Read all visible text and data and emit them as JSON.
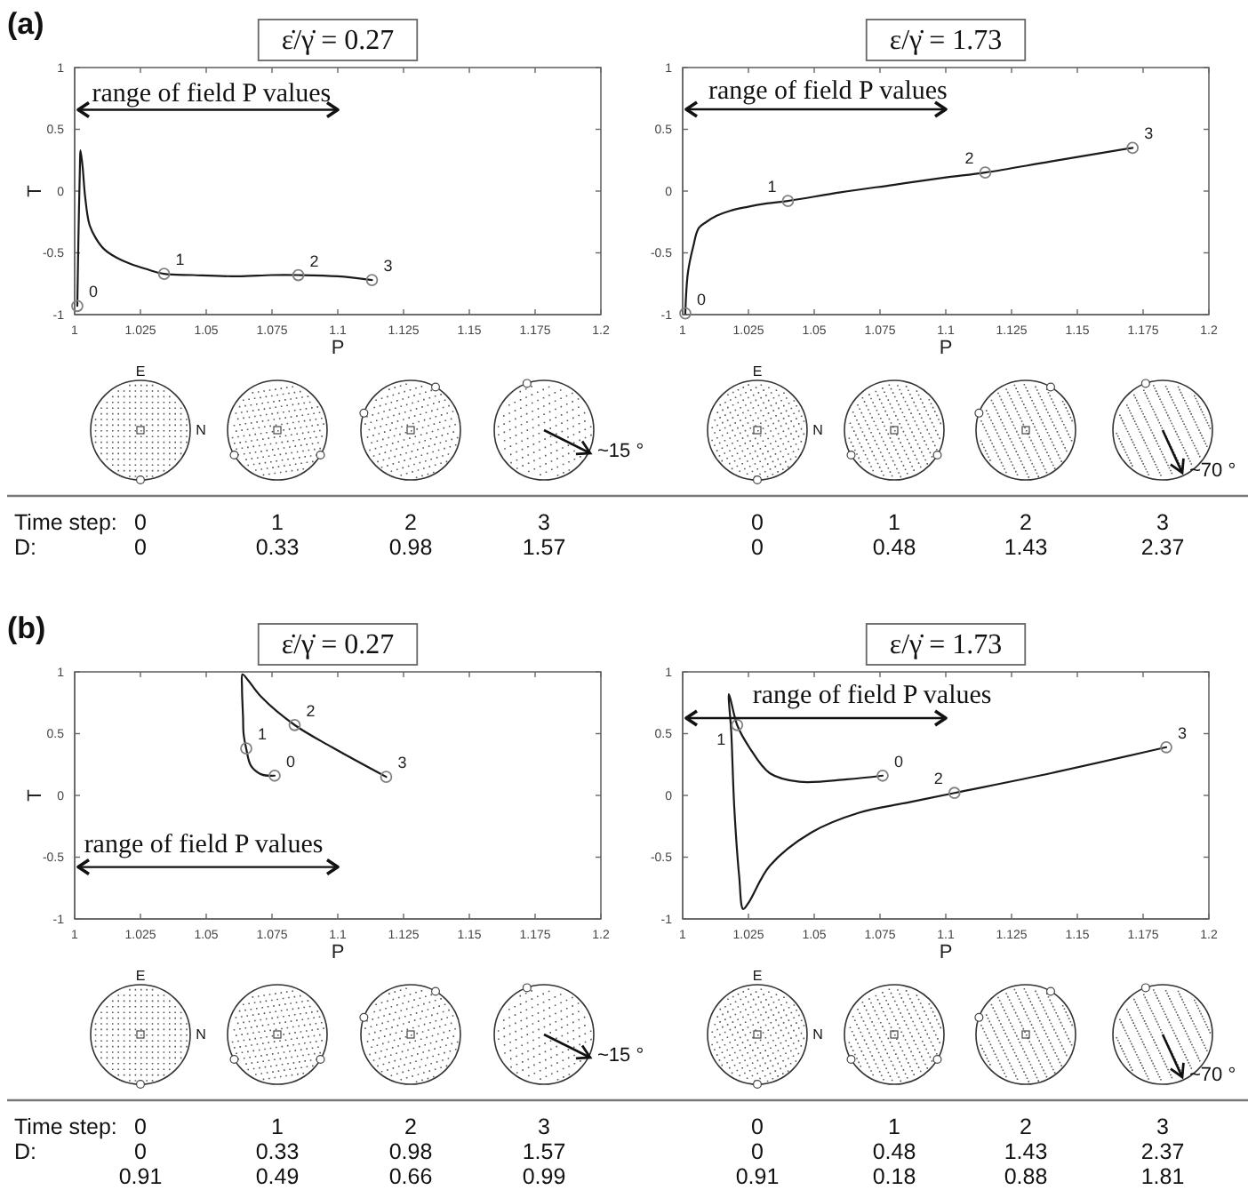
{
  "chart_data": [
    {
      "type": "line",
      "title": "ε̇/γ̇ = 0.27",
      "xlabel": "P",
      "ylabel": "T",
      "xlim": [
        1,
        1.2
      ],
      "ylim": [
        -1,
        1
      ],
      "xticks": [
        1,
        1.025,
        1.05,
        1.075,
        1.1,
        1.125,
        1.15,
        1.175,
        1.2
      ],
      "yticks": [
        -1,
        -0.5,
        0,
        0.5,
        1
      ],
      "series": [
        {
          "color": "#1a1a1a",
          "x": [
            1.001,
            1.0015,
            1.002,
            1.0022,
            1.003,
            1.004,
            1.0056,
            1.008,
            1.0112,
            1.016,
            1.0213,
            1.027,
            1.034,
            1.045,
            1.062,
            1.075,
            1.085,
            1.1,
            1.113
          ],
          "values": [
            -0.93,
            -0.3,
            0.2,
            0.33,
            0.2,
            -0.05,
            -0.27,
            -0.38,
            -0.47,
            -0.54,
            -0.59,
            -0.63,
            -0.67,
            -0.68,
            -0.69,
            -0.68,
            -0.68,
            -0.69,
            -0.72
          ]
        },
        {
          "type": "scatter",
          "marker": "circle",
          "color": "#808080",
          "x": [
            1.001,
            1.034,
            1.085,
            1.113
          ],
          "values": [
            -0.93,
            -0.67,
            -0.68,
            -0.72
          ]
        }
      ],
      "annotations": [
        "(a)",
        "range of field P values",
        {
          "text": "0",
          "x": 1.001,
          "y": -0.93
        },
        {
          "text": "1",
          "x": 1.034,
          "y": -0.67
        },
        {
          "text": "2",
          "x": 1.085,
          "y": -0.68
        },
        {
          "text": "3",
          "x": 1.113,
          "y": -0.72
        },
        "E",
        "N",
        "~15 °",
        "Time step:",
        "0",
        "1",
        "2",
        "3",
        "D:",
        "0",
        "0.33",
        "0.98",
        "1.57"
      ]
    },
    {
      "type": "line",
      "title": "ε/γ̇ = 1.73",
      "xlabel": "P",
      "xlim": [
        1,
        1.2
      ],
      "ylim": [
        -1,
        1
      ],
      "xticks": [
        1,
        1.025,
        1.05,
        1.075,
        1.1,
        1.125,
        1.15,
        1.175,
        1.2
      ],
      "yticks": [
        -1,
        -0.5,
        0,
        0.5,
        1
      ],
      "series": [
        {
          "color": "#1a1a1a",
          "x": [
            1.001,
            1.002,
            1.004,
            1.0061,
            1.009,
            1.0129,
            1.018,
            1.0241,
            1.032,
            1.04,
            1.06,
            1.08,
            1.1,
            1.115,
            1.14,
            1.171
          ],
          "values": [
            -0.99,
            -0.66,
            -0.45,
            -0.3,
            -0.25,
            -0.2,
            -0.16,
            -0.13,
            -0.1,
            -0.08,
            -0.01,
            0.05,
            0.11,
            0.15,
            0.24,
            0.35
          ]
        },
        {
          "type": "scatter",
          "marker": "circle",
          "color": "#808080",
          "x": [
            1.001,
            1.04,
            1.115,
            1.171
          ],
          "values": [
            -0.99,
            -0.08,
            0.15,
            0.35
          ]
        }
      ],
      "annotations": [
        "range of field P values",
        {
          "text": "0",
          "x": 1.001,
          "y": -0.99
        },
        {
          "text": "1",
          "x": 1.04,
          "y": -0.08
        },
        {
          "text": "2",
          "x": 1.115,
          "y": 0.15
        },
        {
          "text": "3",
          "x": 1.171,
          "y": 0.35
        },
        "E",
        "N",
        "~70 °",
        "0",
        "1",
        "2",
        "3",
        "0",
        "0.48",
        "1.43",
        "2.37"
      ]
    },
    {
      "type": "line",
      "title": "ε̇/γ̇ = 0.27",
      "xlabel": "P",
      "ylabel": "T",
      "xlim": [
        1,
        1.2
      ],
      "ylim": [
        -1,
        1
      ],
      "xticks": [
        1,
        1.025,
        1.05,
        1.075,
        1.1,
        1.125,
        1.15,
        1.175,
        1.2
      ],
      "yticks": [
        -1,
        -0.5,
        0,
        0.5,
        1
      ],
      "series": [
        {
          "color": "#1a1a1a",
          "x": [
            1.076,
            1.071,
            1.067,
            1.0652,
            1.0642,
            1.064,
            1.0636,
            1.0638,
            1.066,
            1.0708,
            1.0836,
            1.0978,
            1.1184
          ],
          "values": [
            0.16,
            0.17,
            0.24,
            0.38,
            0.5,
            0.63,
            0.87,
            0.98,
            0.93,
            0.8,
            0.57,
            0.39,
            0.15
          ]
        },
        {
          "type": "scatter",
          "marker": "circle",
          "color": "#808080",
          "x": [
            1.076,
            1.0652,
            1.0836,
            1.1184
          ],
          "values": [
            0.16,
            0.38,
            0.57,
            0.15
          ]
        }
      ],
      "annotations": [
        "(b)",
        "range of field P values",
        {
          "text": "0",
          "x": 1.076,
          "y": 0.16
        },
        {
          "text": "1",
          "x": 1.0652,
          "y": 0.38
        },
        {
          "text": "2",
          "x": 1.0836,
          "y": 0.57
        },
        {
          "text": "3",
          "x": 1.1184,
          "y": 0.15
        },
        "E",
        "N",
        "~15 °",
        "Time step:",
        "0",
        "1",
        "2",
        "3",
        "D:",
        "0",
        "0.33",
        "0.98",
        "1.57",
        "0.91",
        "0.49",
        "0.66",
        "0.99"
      ]
    },
    {
      "type": "line",
      "title": "ε/γ̇ = 1.73",
      "xlabel": "P",
      "xlim": [
        1,
        1.2
      ],
      "ylim": [
        -1,
        1
      ],
      "xticks": [
        1,
        1.025,
        1.05,
        1.075,
        1.1,
        1.125,
        1.15,
        1.175,
        1.2
      ],
      "yticks": [
        -1,
        -0.5,
        0,
        0.5,
        1
      ],
      "series": [
        {
          "color": "#1a1a1a",
          "x": [
            1.076,
            1.0625,
            1.0444,
            1.0331,
            1.0253,
            1.0207,
            1.0176,
            1.0185,
            1.0196,
            1.0215,
            1.023,
            1.0253,
            1.0331,
            1.0489,
            1.067,
            1.085,
            1.1033,
            1.14,
            1.1838
          ],
          "values": [
            0.16,
            0.13,
            0.11,
            0.18,
            0.39,
            0.57,
            0.82,
            0.5,
            -0.09,
            -0.66,
            -0.92,
            -0.86,
            -0.57,
            -0.3,
            -0.14,
            -0.06,
            0.02,
            0.18,
            0.39
          ]
        },
        {
          "type": "scatter",
          "marker": "circle",
          "color": "#808080",
          "x": [
            1.076,
            1.0207,
            1.1033,
            1.1838
          ],
          "values": [
            0.16,
            0.57,
            0.02,
            0.39
          ]
        }
      ],
      "annotations": [
        "range of field P values",
        {
          "text": "0",
          "x": 1.076,
          "y": 0.16
        },
        {
          "text": "1",
          "x": 1.0207,
          "y": 0.57
        },
        {
          "text": "2",
          "x": 1.1033,
          "y": 0.02
        },
        {
          "text": "3",
          "x": 1.1838,
          "y": 0.39
        },
        "E",
        "N",
        "~70 °",
        "0",
        "1",
        "2",
        "3",
        "0",
        "0.48",
        "1.43",
        "2.37",
        "0.91",
        "0.18",
        "0.88",
        "1.81"
      ]
    }
  ]
}
